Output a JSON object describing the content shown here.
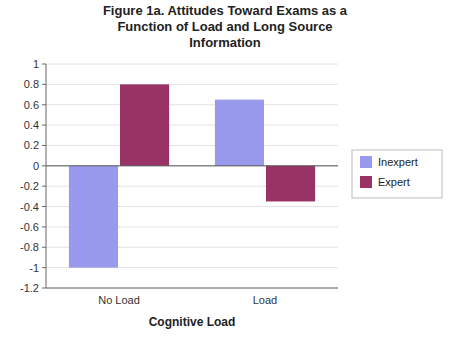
{
  "chart_data": {
    "type": "bar",
    "title": "Figure 1a. Attitudes Toward Exams as a\nFunction of Load and Long Source\nInformation",
    "xlabel": "Cognitive Load",
    "categories": [
      "No Load",
      "Load"
    ],
    "series": [
      {
        "name": "Inexpert",
        "color": "#9999EE",
        "values": [
          -1.0,
          0.65
        ]
      },
      {
        "name": "Expert",
        "color": "#993366",
        "values": [
          0.8,
          -0.35
        ]
      }
    ],
    "ylim": [
      -1.2,
      1.0
    ],
    "yticks": [
      -1.2,
      -1,
      -0.8,
      -0.6,
      -0.4,
      -0.2,
      0,
      0.2,
      0.4,
      0.6,
      0.8,
      1
    ],
    "grid": true,
    "legend": "right"
  }
}
